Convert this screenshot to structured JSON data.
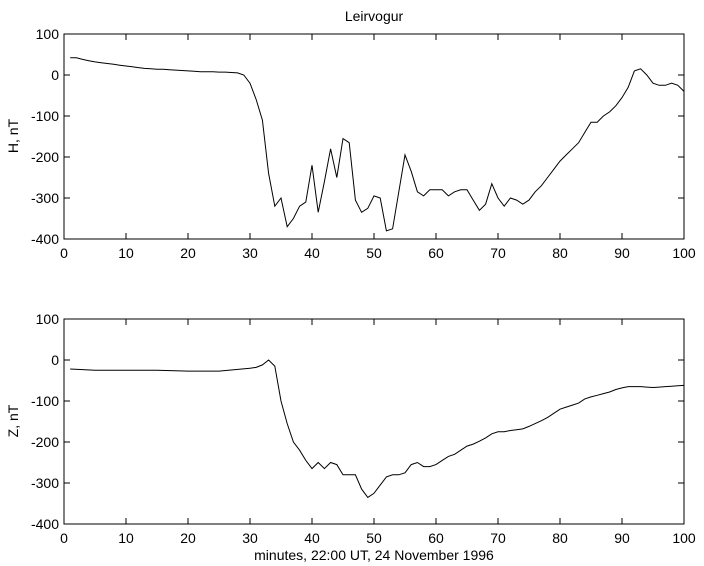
{
  "chart_data": [
    {
      "type": "line",
      "title": "Leirvogur",
      "xlabel": "",
      "ylabel": "H, nT",
      "xlim": [
        0,
        100
      ],
      "ylim": [
        -400,
        100
      ],
      "xticks": [
        "0",
        "10",
        "20",
        "30",
        "40",
        "50",
        "60",
        "70",
        "80",
        "90",
        "100"
      ],
      "yticks": [
        "100",
        "0",
        "-100",
        "-200",
        "-300",
        "-400"
      ],
      "grid": false,
      "series": [
        {
          "x": [
            1,
            2,
            3,
            4,
            5,
            6,
            7,
            8,
            9,
            10,
            11,
            12,
            13,
            14,
            15,
            16,
            17,
            18,
            19,
            20,
            21,
            22,
            23,
            24,
            25,
            26,
            27,
            28,
            29,
            30,
            31,
            32,
            33,
            34,
            35,
            36,
            37,
            38,
            39,
            40,
            41,
            42,
            43,
            44,
            45,
            46,
            47,
            48,
            49,
            50,
            51,
            52,
            53,
            54,
            55,
            56,
            57,
            58,
            59,
            60,
            61,
            62,
            63,
            64,
            65,
            66,
            67,
            68,
            69,
            70,
            71,
            72,
            73,
            74,
            75,
            76,
            77,
            78,
            79,
            80,
            81,
            82,
            83,
            84,
            85,
            86,
            87,
            88,
            89,
            90,
            91,
            92,
            93,
            94,
            95,
            96,
            97,
            98,
            99,
            100
          ],
          "y": [
            42,
            42,
            38,
            35,
            32,
            30,
            28,
            26,
            24,
            22,
            20,
            18,
            16,
            15,
            14,
            14,
            13,
            12,
            11,
            10,
            9,
            8,
            8,
            8,
            7,
            7,
            6,
            5,
            0,
            -20,
            -60,
            -110,
            -240,
            -320,
            -300,
            -370,
            -350,
            -320,
            -310,
            -220,
            -335,
            -260,
            -180,
            -250,
            -155,
            -165,
            -305,
            -335,
            -325,
            -295,
            -300,
            -380,
            -375,
            -285,
            -195,
            -235,
            -285,
            -295,
            -280,
            -280,
            -280,
            -295,
            -285,
            -280,
            -280,
            -305,
            -330,
            -315,
            -265,
            -300,
            -320,
            -300,
            -305,
            -315,
            -305,
            -285,
            -270,
            -250,
            -230,
            -210,
            -195,
            -180,
            -165,
            -140,
            -115,
            -115,
            -100,
            -90,
            -75,
            -55,
            -30,
            10,
            15,
            0,
            -20,
            -25,
            -25,
            -20,
            -25,
            -40
          ]
        }
      ]
    },
    {
      "type": "line",
      "title": "",
      "xlabel": "minutes, 22:00 UT, 24 November 1996",
      "ylabel": "Z, nT",
      "xlim": [
        0,
        100
      ],
      "ylim": [
        -400,
        100
      ],
      "xticks": [
        "0",
        "10",
        "20",
        "30",
        "40",
        "50",
        "60",
        "70",
        "80",
        "90",
        "100"
      ],
      "yticks": [
        "100",
        "0",
        "-100",
        "-200",
        "-300",
        "-400"
      ],
      "grid": false,
      "series": [
        {
          "x": [
            1,
            5,
            10,
            15,
            20,
            25,
            30,
            31,
            32,
            33,
            34,
            35,
            36,
            37,
            38,
            39,
            40,
            41,
            42,
            43,
            44,
            45,
            46,
            47,
            48,
            49,
            50,
            51,
            52,
            53,
            54,
            55,
            56,
            57,
            58,
            59,
            60,
            61,
            62,
            63,
            64,
            65,
            66,
            67,
            68,
            69,
            70,
            71,
            72,
            73,
            74,
            75,
            76,
            77,
            78,
            79,
            80,
            81,
            82,
            83,
            84,
            85,
            86,
            87,
            88,
            89,
            90,
            91,
            92,
            93,
            94,
            95,
            96,
            97,
            98,
            99,
            100
          ],
          "y": [
            -22,
            -25,
            -25,
            -25,
            -27,
            -27,
            -20,
            -18,
            -12,
            0,
            -15,
            -100,
            -155,
            -200,
            -220,
            -245,
            -265,
            -250,
            -265,
            -250,
            -255,
            -280,
            -280,
            -280,
            -315,
            -335,
            -325,
            -305,
            -285,
            -280,
            -280,
            -275,
            -255,
            -250,
            -260,
            -260,
            -255,
            -245,
            -235,
            -230,
            -220,
            -210,
            -205,
            -198,
            -190,
            -180,
            -175,
            -175,
            -172,
            -170,
            -168,
            -162,
            -155,
            -148,
            -140,
            -130,
            -120,
            -115,
            -110,
            -105,
            -95,
            -90,
            -86,
            -82,
            -78,
            -72,
            -68,
            -65,
            -65,
            -65,
            -66,
            -67,
            -66,
            -65,
            -64,
            -63,
            -62
          ]
        }
      ]
    }
  ]
}
